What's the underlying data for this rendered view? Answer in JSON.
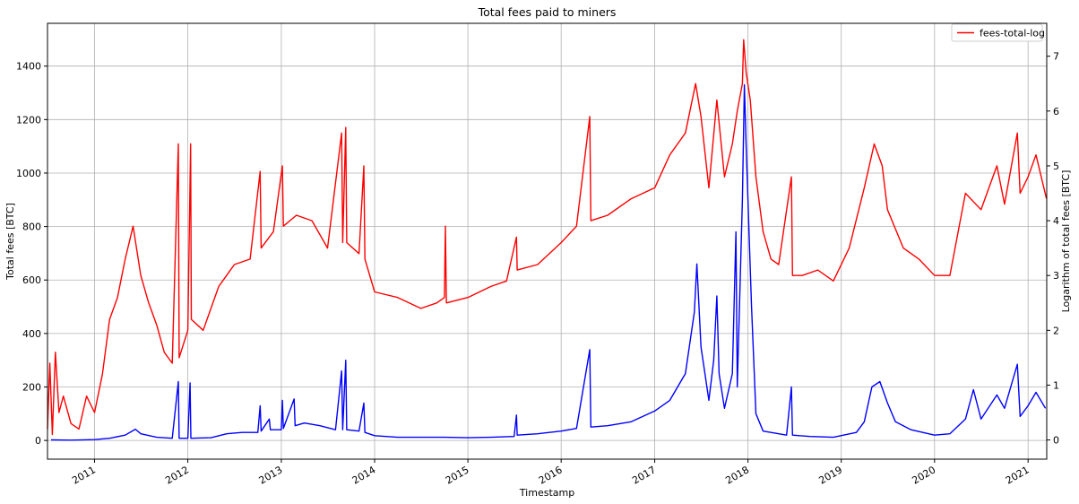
{
  "chart_data": {
    "type": "line",
    "title": "Total fees paid to miners",
    "xlabel": "Timestamp",
    "ylabel": "Total fees [BTC]",
    "y2label": "Logarithm of total fees [BTC]",
    "xlim": [
      "2010-07-01",
      "2021-03-15"
    ],
    "ylim": [
      -70,
      1560
    ],
    "y2lim": [
      -0.35,
      7.6
    ],
    "grid": true,
    "legend_position": "upper-right",
    "x_ticks": [
      "2011",
      "2012",
      "2013",
      "2014",
      "2015",
      "2016",
      "2017",
      "2018",
      "2019",
      "2020",
      "2021"
    ],
    "y_ticks": [
      0,
      200,
      400,
      600,
      800,
      1000,
      1200,
      1400
    ],
    "y2_ticks": [
      0,
      1,
      2,
      3,
      4,
      5,
      6,
      7
    ],
    "series": [
      {
        "name": "",
        "axis": "left",
        "color": "#0000ff",
        "points": [
          [
            "2010-07-15",
            2
          ],
          [
            "2010-10-01",
            1
          ],
          [
            "2011-01-01",
            3
          ],
          [
            "2011-03-01",
            8
          ],
          [
            "2011-05-01",
            20
          ],
          [
            "2011-06-10",
            42
          ],
          [
            "2011-07-01",
            25
          ],
          [
            "2011-09-01",
            12
          ],
          [
            "2011-11-01",
            8
          ],
          [
            "2011-11-25",
            220
          ],
          [
            "2011-11-28",
            8
          ],
          [
            "2012-01-01",
            8
          ],
          [
            "2012-01-10",
            215
          ],
          [
            "2012-01-13",
            8
          ],
          [
            "2012-04-01",
            10
          ],
          [
            "2012-06-01",
            25
          ],
          [
            "2012-08-01",
            30
          ],
          [
            "2012-10-01",
            30
          ],
          [
            "2012-10-10",
            130
          ],
          [
            "2012-10-14",
            35
          ],
          [
            "2012-11-15",
            80
          ],
          [
            "2012-11-19",
            40
          ],
          [
            "2013-01-01",
            40
          ],
          [
            "2013-01-05",
            150
          ],
          [
            "2013-01-09",
            45
          ],
          [
            "2013-02-20",
            155
          ],
          [
            "2013-02-24",
            55
          ],
          [
            "2013-04-01",
            65
          ],
          [
            "2013-06-01",
            55
          ],
          [
            "2013-08-01",
            40
          ],
          [
            "2013-08-25",
            260
          ],
          [
            "2013-08-29",
            40
          ],
          [
            "2013-09-10",
            300
          ],
          [
            "2013-09-14",
            40
          ],
          [
            "2013-11-01",
            35
          ],
          [
            "2013-11-20",
            140
          ],
          [
            "2013-11-24",
            30
          ],
          [
            "2014-01-01",
            18
          ],
          [
            "2014-04-01",
            12
          ],
          [
            "2014-07-01",
            12
          ],
          [
            "2014-10-01",
            12
          ],
          [
            "2015-01-01",
            10
          ],
          [
            "2015-04-01",
            12
          ],
          [
            "2015-07-01",
            15
          ],
          [
            "2015-07-10",
            95
          ],
          [
            "2015-07-13",
            20
          ],
          [
            "2015-10-01",
            25
          ],
          [
            "2016-01-01",
            35
          ],
          [
            "2016-03-01",
            45
          ],
          [
            "2016-04-22",
            340
          ],
          [
            "2016-04-26",
            50
          ],
          [
            "2016-07-01",
            55
          ],
          [
            "2016-10-01",
            70
          ],
          [
            "2017-01-01",
            110
          ],
          [
            "2017-03-01",
            150
          ],
          [
            "2017-05-01",
            250
          ],
          [
            "2017-06-05",
            480
          ],
          [
            "2017-06-15",
            660
          ],
          [
            "2017-07-01",
            350
          ],
          [
            "2017-08-01",
            150
          ],
          [
            "2017-08-20",
            300
          ],
          [
            "2017-09-01",
            540
          ],
          [
            "2017-09-10",
            250
          ],
          [
            "2017-10-01",
            120
          ],
          [
            "2017-11-01",
            250
          ],
          [
            "2017-11-15",
            780
          ],
          [
            "2017-11-20",
            200
          ],
          [
            "2017-12-10",
            900
          ],
          [
            "2017-12-18",
            1330
          ],
          [
            "2017-12-25",
            1100
          ],
          [
            "2018-01-05",
            780
          ],
          [
            "2018-01-15",
            500
          ],
          [
            "2018-02-01",
            100
          ],
          [
            "2018-03-01",
            35
          ],
          [
            "2018-05-01",
            25
          ],
          [
            "2018-06-01",
            20
          ],
          [
            "2018-06-20",
            200
          ],
          [
            "2018-06-24",
            20
          ],
          [
            "2018-09-01",
            15
          ],
          [
            "2018-12-01",
            12
          ],
          [
            "2019-03-01",
            30
          ],
          [
            "2019-04-01",
            70
          ],
          [
            "2019-05-01",
            200
          ],
          [
            "2019-06-01",
            220
          ],
          [
            "2019-07-01",
            140
          ],
          [
            "2019-08-01",
            70
          ],
          [
            "2019-10-01",
            40
          ],
          [
            "2020-01-01",
            20
          ],
          [
            "2020-03-01",
            25
          ],
          [
            "2020-05-01",
            80
          ],
          [
            "2020-06-01",
            190
          ],
          [
            "2020-07-01",
            80
          ],
          [
            "2020-09-01",
            170
          ],
          [
            "2020-10-01",
            120
          ],
          [
            "2020-11-20",
            285
          ],
          [
            "2020-12-01",
            90
          ],
          [
            "2021-01-01",
            130
          ],
          [
            "2021-02-01",
            180
          ],
          [
            "2021-03-10",
            120
          ]
        ]
      },
      {
        "name": "fees-total-log",
        "axis": "right",
        "color": "#ff0000",
        "points": [
          [
            "2010-07-01",
            0.2
          ],
          [
            "2010-07-10",
            1.4
          ],
          [
            "2010-07-20",
            0.1
          ],
          [
            "2010-08-01",
            1.6
          ],
          [
            "2010-08-15",
            0.5
          ],
          [
            "2010-09-01",
            0.8
          ],
          [
            "2010-10-01",
            0.3
          ],
          [
            "2010-11-01",
            0.2
          ],
          [
            "2010-12-01",
            0.8
          ],
          [
            "2011-01-01",
            0.5
          ],
          [
            "2011-02-01",
            1.2
          ],
          [
            "2011-03-01",
            2.2
          ],
          [
            "2011-04-01",
            2.6
          ],
          [
            "2011-05-01",
            3.3
          ],
          [
            "2011-06-01",
            3.9
          ],
          [
            "2011-07-01",
            3.0
          ],
          [
            "2011-08-01",
            2.5
          ],
          [
            "2011-09-01",
            2.1
          ],
          [
            "2011-10-01",
            1.6
          ],
          [
            "2011-11-01",
            1.4
          ],
          [
            "2011-11-25",
            5.4
          ],
          [
            "2011-11-28",
            1.5
          ],
          [
            "2012-01-01",
            2.0
          ],
          [
            "2012-01-12",
            5.4
          ],
          [
            "2012-01-15",
            2.2
          ],
          [
            "2012-03-01",
            2.0
          ],
          [
            "2012-05-01",
            2.8
          ],
          [
            "2012-07-01",
            3.2
          ],
          [
            "2012-09-01",
            3.3
          ],
          [
            "2012-10-10",
            4.9
          ],
          [
            "2012-10-14",
            3.5
          ],
          [
            "2012-12-01",
            3.8
          ],
          [
            "2013-01-05",
            5.0
          ],
          [
            "2013-01-09",
            3.9
          ],
          [
            "2013-03-01",
            4.1
          ],
          [
            "2013-05-01",
            4.0
          ],
          [
            "2013-07-01",
            3.5
          ],
          [
            "2013-08-25",
            5.6
          ],
          [
            "2013-08-29",
            3.6
          ],
          [
            "2013-09-10",
            5.7
          ],
          [
            "2013-09-14",
            3.6
          ],
          [
            "2013-11-01",
            3.4
          ],
          [
            "2013-11-20",
            5.0
          ],
          [
            "2013-11-24",
            3.3
          ],
          [
            "2014-01-01",
            2.7
          ],
          [
            "2014-04-01",
            2.6
          ],
          [
            "2014-07-01",
            2.4
          ],
          [
            "2014-09-01",
            2.5
          ],
          [
            "2014-10-01",
            2.6
          ],
          [
            "2014-10-05",
            3.9
          ],
          [
            "2014-10-09",
            2.5
          ],
          [
            "2015-01-01",
            2.6
          ],
          [
            "2015-04-01",
            2.8
          ],
          [
            "2015-06-01",
            2.9
          ],
          [
            "2015-07-10",
            3.7
          ],
          [
            "2015-07-13",
            3.1
          ],
          [
            "2015-10-01",
            3.2
          ],
          [
            "2016-01-01",
            3.6
          ],
          [
            "2016-03-01",
            3.9
          ],
          [
            "2016-04-22",
            5.9
          ],
          [
            "2016-04-26",
            4.0
          ],
          [
            "2016-07-01",
            4.1
          ],
          [
            "2016-10-01",
            4.4
          ],
          [
            "2017-01-01",
            4.6
          ],
          [
            "2017-03-01",
            5.2
          ],
          [
            "2017-05-01",
            5.6
          ],
          [
            "2017-06-10",
            6.5
          ],
          [
            "2017-07-01",
            5.9
          ],
          [
            "2017-08-01",
            4.6
          ],
          [
            "2017-09-01",
            6.2
          ],
          [
            "2017-10-01",
            4.8
          ],
          [
            "2017-11-01",
            5.4
          ],
          [
            "2017-11-20",
            6.0
          ],
          [
            "2017-12-10",
            6.5
          ],
          [
            "2017-12-15",
            7.3
          ],
          [
            "2017-12-25",
            6.7
          ],
          [
            "2018-01-10",
            6.2
          ],
          [
            "2018-02-01",
            4.8
          ],
          [
            "2018-03-01",
            3.8
          ],
          [
            "2018-04-01",
            3.3
          ],
          [
            "2018-05-01",
            3.2
          ],
          [
            "2018-06-20",
            4.8
          ],
          [
            "2018-06-24",
            3.0
          ],
          [
            "2018-08-01",
            3.0
          ],
          [
            "2018-10-01",
            3.1
          ],
          [
            "2018-12-01",
            2.9
          ],
          [
            "2019-02-01",
            3.5
          ],
          [
            "2019-04-01",
            4.6
          ],
          [
            "2019-05-10",
            5.4
          ],
          [
            "2019-06-10",
            5.0
          ],
          [
            "2019-07-01",
            4.2
          ],
          [
            "2019-09-01",
            3.5
          ],
          [
            "2019-11-01",
            3.3
          ],
          [
            "2020-01-01",
            3.0
          ],
          [
            "2020-03-01",
            3.0
          ],
          [
            "2020-05-01",
            4.5
          ],
          [
            "2020-07-01",
            4.2
          ],
          [
            "2020-09-01",
            5.0
          ],
          [
            "2020-10-01",
            4.3
          ],
          [
            "2020-11-20",
            5.6
          ],
          [
            "2020-12-01",
            4.5
          ],
          [
            "2021-01-01",
            4.8
          ],
          [
            "2021-02-01",
            5.2
          ],
          [
            "2021-03-14",
            4.4
          ]
        ]
      }
    ]
  }
}
